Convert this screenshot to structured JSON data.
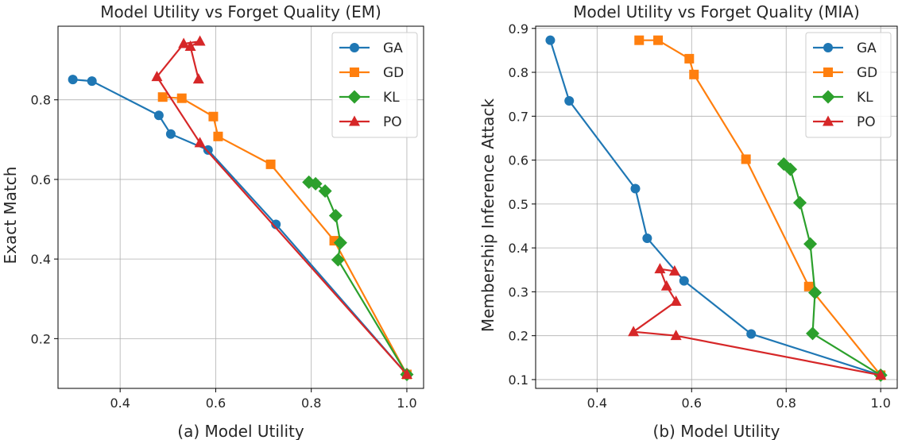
{
  "chart_data": [
    {
      "type": "line",
      "title": "Model Utility vs Forget Quality (EM)",
      "xlabel": "(a) Model Utility",
      "ylabel": "Exact Match",
      "xlim": [
        0.27,
        1.035
      ],
      "ylim": [
        0.075,
        0.985
      ],
      "xticks": [
        0.4,
        0.6,
        0.8,
        1.0
      ],
      "yticks": [
        0.2,
        0.4,
        0.6,
        0.8
      ],
      "xtick_labels": [
        "0.4",
        "0.6",
        "0.8",
        "1.0"
      ],
      "ytick_labels": [
        "0.2",
        "0.4",
        "0.6",
        "0.8"
      ],
      "grid": true,
      "legend_position": "top-right",
      "series": [
        {
          "name": "GA",
          "color": "#1f77b4",
          "marker": "circle",
          "x": [
            0.301,
            0.341,
            0.481,
            0.506,
            0.584,
            0.726,
            1.0
          ],
          "y": [
            0.851,
            0.847,
            0.761,
            0.714,
            0.674,
            0.487,
            0.11
          ]
        },
        {
          "name": "GD",
          "color": "#ff7f0e",
          "marker": "square",
          "x": [
            0.489,
            0.529,
            0.595,
            0.605,
            0.715,
            0.848,
            1.0
          ],
          "y": [
            0.807,
            0.804,
            0.758,
            0.708,
            0.638,
            0.446,
            0.11
          ]
        },
        {
          "name": "KL",
          "color": "#2ca02c",
          "marker": "diamond",
          "x": [
            0.795,
            0.809,
            0.829,
            0.851,
            0.861,
            0.856,
            1.0
          ],
          "y": [
            0.593,
            0.589,
            0.571,
            0.509,
            0.441,
            0.398,
            0.11
          ]
        },
        {
          "name": "PO",
          "color": "#d62728",
          "marker": "triangle",
          "x": [
            0.564,
            0.547,
            0.567,
            0.533,
            0.477,
            0.567,
            1.0
          ],
          "y": [
            0.852,
            0.934,
            0.947,
            0.941,
            0.858,
            0.692,
            0.11
          ]
        }
      ]
    },
    {
      "type": "line",
      "title": "Model Utility vs Forget Quality (MIA)",
      "xlabel": "(b) Model Utility",
      "ylabel": "Membership Inference Attack",
      "xlim": [
        0.27,
        1.035
      ],
      "ylim": [
        0.08,
        0.905
      ],
      "xticks": [
        0.4,
        0.6,
        0.8,
        1.0
      ],
      "yticks": [
        0.1,
        0.2,
        0.3,
        0.4,
        0.5,
        0.6,
        0.7,
        0.8,
        0.9
      ],
      "xtick_labels": [
        "0.4",
        "0.6",
        "0.8",
        "1.0"
      ],
      "ytick_labels": [
        "0.1",
        "0.2",
        "0.3",
        "0.4",
        "0.5",
        "0.6",
        "0.7",
        "0.8",
        "0.9"
      ],
      "grid": true,
      "legend_position": "top-right",
      "series": [
        {
          "name": "GA",
          "color": "#1f77b4",
          "marker": "circle",
          "x": [
            0.301,
            0.341,
            0.481,
            0.506,
            0.584,
            0.726,
            1.0
          ],
          "y": [
            0.873,
            0.735,
            0.535,
            0.422,
            0.325,
            0.204,
            0.11
          ]
        },
        {
          "name": "GD",
          "color": "#ff7f0e",
          "marker": "square",
          "x": [
            0.489,
            0.529,
            0.595,
            0.605,
            0.715,
            0.848,
            1.0
          ],
          "y": [
            0.873,
            0.873,
            0.831,
            0.795,
            0.602,
            0.312,
            0.11
          ]
        },
        {
          "name": "KL",
          "color": "#2ca02c",
          "marker": "diamond",
          "x": [
            0.795,
            0.809,
            0.829,
            0.851,
            0.861,
            0.856,
            1.0
          ],
          "y": [
            0.591,
            0.579,
            0.503,
            0.409,
            0.298,
            0.205,
            0.11
          ]
        },
        {
          "name": "PO",
          "color": "#d62728",
          "marker": "triangle",
          "x": [
            0.564,
            0.533,
            0.547,
            0.567,
            0.477,
            0.567,
            1.0
          ],
          "y": [
            0.347,
            0.352,
            0.313,
            0.278,
            0.209,
            0.2,
            0.11
          ]
        }
      ]
    }
  ]
}
